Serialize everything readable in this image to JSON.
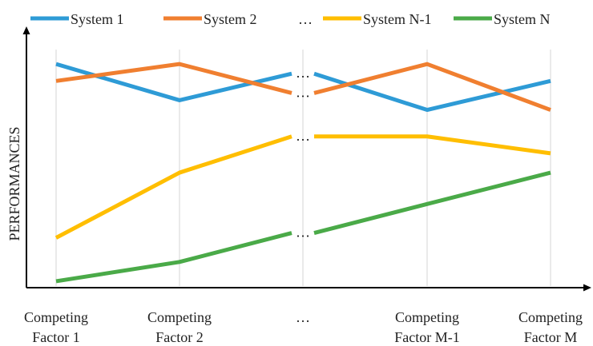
{
  "chart_data": {
    "type": "line",
    "title": "",
    "xlabel": "",
    "ylabel": "PERFORMANCES",
    "ylim": [
      0,
      100
    ],
    "grid": "vertical",
    "legend_position": "top",
    "gap_marker": "…",
    "categories": [
      [
        "Competing",
        "Factor 1"
      ],
      [
        "Competing",
        "Factor 2"
      ],
      [
        "…"
      ],
      [
        "Competing",
        "Factor M-1"
      ],
      [
        "Competing",
        "Factor M"
      ]
    ],
    "legend": [
      "System 1",
      "System 2",
      "…",
      "System N-1",
      "System N"
    ],
    "series": [
      {
        "name": "System 1",
        "color": "#2e9bd6",
        "values": [
          92,
          77,
          88,
          73,
          85
        ]
      },
      {
        "name": "System 2",
        "color": "#f07f30",
        "values": [
          85,
          92,
          80,
          92,
          73
        ]
      },
      {
        "name": "System N-1",
        "color": "#ffbe00",
        "values": [
          20,
          47,
          62,
          62,
          55
        ]
      },
      {
        "name": "System N",
        "color": "#4aaa48",
        "values": [
          2,
          10,
          22,
          34,
          47
        ]
      }
    ],
    "gap_values": [
      88,
      80,
      62,
      22
    ]
  }
}
